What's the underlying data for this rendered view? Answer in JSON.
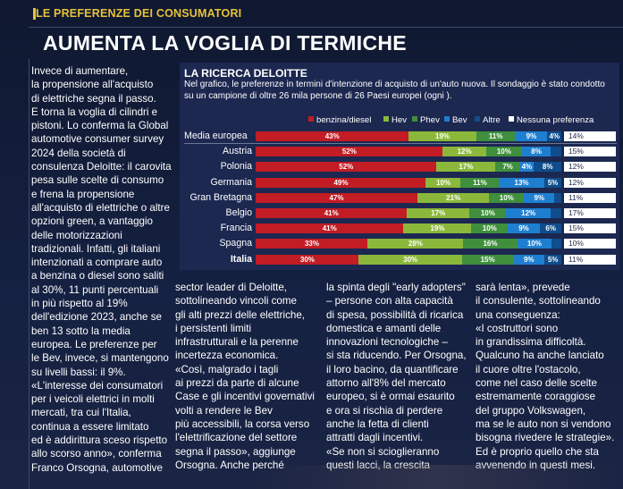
{
  "rubric": "LE PREFERENZE DEI CONSUMATORI",
  "headline": "AUMENTA LA VOGLIA DI TERMICHE",
  "columns": [
    "Invece di aumentare,\nla propensione all'acquisto\ndi elettriche segna il passo.\nE torna la voglia di cilindri e\npistoni. Lo conferma la Global\nautomotive consumer survey\n2024 della società di\nconsulenza Deloitte: il carovita\npesa sulle scelte di consumo\ne frena la propensione\nall'acquisto di elettriche o altre\nopzioni green, a vantaggio\ndelle motorizzazioni\ntradizionali. Infatti, gli italiani\nintenzionati a comprare auto\na benzina o diesel sono saliti\nal 30%, 11 punti percentuali\nin più rispetto al 19%\ndell'edizione 2023, anche se\nben 13 sotto la media\neuropea. Le preferenze per\nle Bev, invece, si mantengono\nsu livelli bassi: il 9%.\n«L'interesse dei consumatori\nper i veicoli elettrici in molti\nmercati, tra cui l'Italia,\ncontinua a essere limitato\ned è addirittura sceso rispetto\nallo scorso anno», conferma\nFranco Orsogna, automotive",
    "sector leader di Deloitte,\nsottolineando vincoli come\ngli alti prezzi delle elettriche,\ni persistenti limiti\ninfrastrutturali e la perenne\nincertezza economica.\n«Così, malgrado i tagli\nai prezzi da parte di alcune\nCase e gli incentivi governativi\nvolti a rendere le Bev\npiù accessibili, la corsa verso\nl'elettrificazione del settore\nsegna il passo», aggiunge\nOrsogna. Anche perché",
    "la spinta degli \"early adopters\"\n– persone con alta capacità\ndi spesa, possibilità di ricarica\ndomestica e amanti delle\ninnovazioni tecnologiche –\nsi sta riducendo. Per Orsogna,\nil loro bacino, da quantificare\nattorno all'8% del mercato\neuropeo, si è ormai esaurito\ne ora si rischia di perdere\nanche la fetta di clienti\nattratti dagli incentivi.\n«Se non si scioglieranno\nquesti lacci, la crescita",
    "sarà lenta», prevede\nil consulente, sottolineando\nuna conseguenza:\n«I costruttori sono\nin grandissima difficoltà.\nQualcuno ha anche lanciato\nil cuore oltre l'ostacolo,\ncome nel caso delle scelte\nestremamente coraggiose\ndel gruppo Volkswagen,\nma se le auto non si vendono\nbisogna rivedere le strategie».\nEd è proprio quello che sta\navvenendo in questi mesi."
  ],
  "chart_data": {
    "type": "bar",
    "stacked": "horizontal",
    "title": "LA RICERCA DELOITTE",
    "subtitle": "Nel grafico, le preferenze in termini d'intenzione di acquisto di un'auto nuova. Il sondaggio è stato condotto\nsu un campione di oltre 26 mila persone di 26 Paesi europei (ogni ).",
    "categories": [
      "Media europea",
      "Austria",
      "Polonia",
      "Germania",
      "Gran Bretagna",
      "Belgio",
      "Francia",
      "Spagna",
      "Italia"
    ],
    "series": [
      {
        "name": "benzina/diesel",
        "color": "#c21c24",
        "values": [
          43,
          52,
          52,
          49,
          47,
          41,
          41,
          33,
          30
        ]
      },
      {
        "name": "Hev",
        "color": "#8bb83a",
        "values": [
          19,
          12,
          17,
          10,
          21,
          17,
          19,
          28,
          30
        ]
      },
      {
        "name": "Phev",
        "color": "#3f8f3c",
        "values": [
          11,
          10,
          7,
          11,
          10,
          10,
          10,
          16,
          15
        ]
      },
      {
        "name": "Bev",
        "color": "#1e7fd0",
        "values": [
          9,
          8,
          4,
          13,
          9,
          12,
          9,
          10,
          9
        ]
      },
      {
        "name": "Altre",
        "color": "#0f4d8c",
        "values": [
          4,
          3,
          8,
          5,
          2,
          3,
          6,
          3,
          5
        ]
      },
      {
        "name": "Nessuna preferenza",
        "color": "#ffffff",
        "values": [
          14,
          15,
          12,
          12,
          11,
          17,
          15,
          10,
          11
        ]
      }
    ],
    "value_suffix": "%",
    "xlim": [
      0,
      100
    ]
  }
}
